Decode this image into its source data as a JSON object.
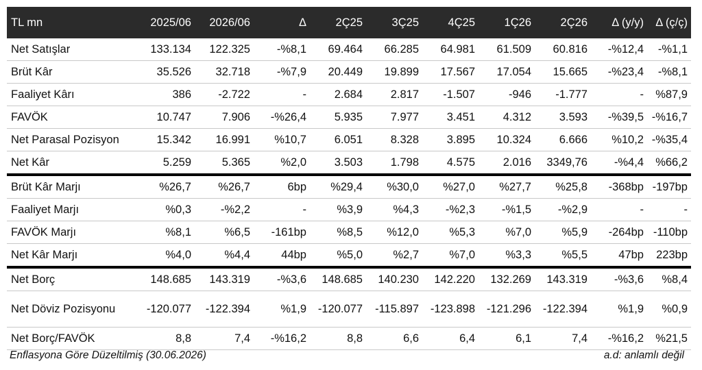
{
  "table": {
    "headers": [
      "TL mn",
      "2025/06",
      "2026/06",
      "Δ",
      "2Ç25",
      "3Ç25",
      "4Ç25",
      "1Ç26",
      "2Ç26",
      "Δ (y/y)",
      "Δ (ç/ç)"
    ],
    "rows": [
      [
        "Net Satışlar",
        "133.134",
        "122.325",
        "-%8,1",
        "69.464",
        "66.285",
        "64.981",
        "61.509",
        "60.816",
        "-%12,4",
        "-%1,1"
      ],
      [
        "Brüt Kâr",
        "35.526",
        "32.718",
        "-%7,9",
        "20.449",
        "19.899",
        "17.567",
        "17.054",
        "15.665",
        "-%23,4",
        "-%8,1"
      ],
      [
        "Faaliyet Kârı",
        "386",
        "-2.722",
        "-",
        "2.684",
        "2.817",
        "-1.507",
        "-946",
        "-1.777",
        "-",
        "%87,9"
      ],
      [
        "FAVÖK",
        "10.747",
        "7.906",
        "-%26,4",
        "5.935",
        "7.977",
        "3.451",
        "4.312",
        "3.593",
        "-%39,5",
        "-%16,7"
      ],
      [
        "Net Parasal Pozisyon",
        "15.342",
        "16.991",
        "%10,7",
        "6.051",
        "8.328",
        "3.895",
        "10.324",
        "6.666",
        "%10,2",
        "-%35,4"
      ],
      [
        "Net Kâr",
        "5.259",
        "5.365",
        "%2,0",
        "3.503",
        "1.798",
        "4.575",
        "2.016",
        "3349,76",
        "-%4,4",
        "%66,2"
      ],
      [
        "Brüt Kâr Marjı",
        "%26,7",
        "%26,7",
        "6bp",
        "%29,4",
        "%30,0",
        "%27,0",
        "%27,7",
        "%25,8",
        "-368bp",
        "-197bp"
      ],
      [
        "Faaliyet Marjı",
        "%0,3",
        "-%2,2",
        "-",
        "%3,9",
        "%4,3",
        "-%2,3",
        "-%1,5",
        "-%2,9",
        "-",
        "-"
      ],
      [
        "FAVÖK Marjı",
        "%8,1",
        "%6,5",
        "-161bp",
        "%8,5",
        "%12,0",
        "%5,3",
        "%7,0",
        "%5,9",
        "-264bp",
        "-110bp"
      ],
      [
        "Net Kâr Marjı",
        "%4,0",
        "%4,4",
        "44bp",
        "%5,0",
        "%2,7",
        "%7,0",
        "%3,3",
        "%5,5",
        "47bp",
        "223bp"
      ],
      [
        "Net Borç",
        "148.685",
        "143.319",
        "-%3,6",
        "148.685",
        "140.230",
        "142.220",
        "132.269",
        "143.319",
        "-%3,6",
        "%8,4"
      ],
      [
        "Net Döviz Pozisyonu",
        "-120.077",
        "-122.394",
        "%1,9",
        "-120.077",
        "-115.897",
        "-123.898",
        "-121.296",
        "-122.394",
        "%1,9",
        "%0,9"
      ],
      [
        "Net Borç/FAVÖK",
        "8,8",
        "7,4",
        "-%16,2",
        "8,8",
        "6,6",
        "6,4",
        "6,1",
        "7,4",
        "-%16,2",
        "%21,5"
      ]
    ]
  },
  "footer": {
    "left": "Enflasyona Göre Düzeltilmiş (30.06.2026)",
    "right": "a.d: anlamlı değil"
  }
}
